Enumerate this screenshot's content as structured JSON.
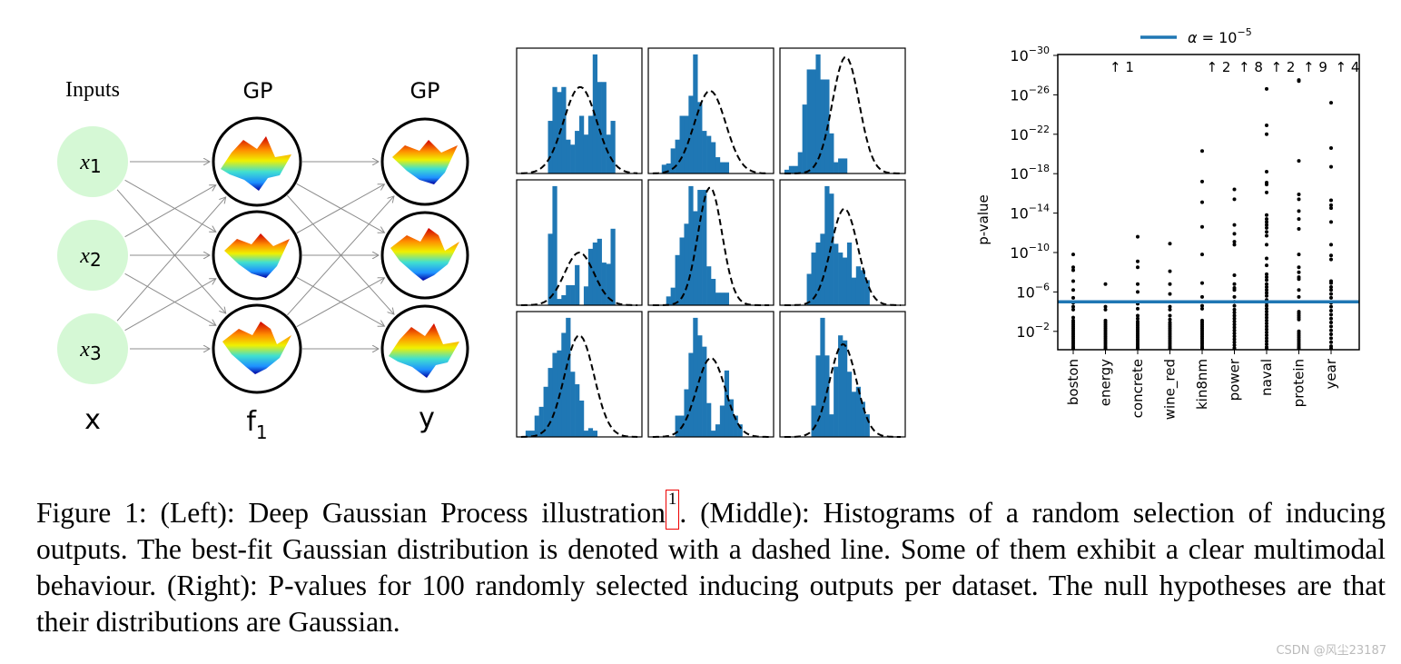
{
  "diagram": {
    "col_titles": [
      "Inputs",
      "GP",
      "GP"
    ],
    "input_nodes": [
      {
        "var": "x",
        "sub": "1"
      },
      {
        "var": "x",
        "sub": "2"
      },
      {
        "var": "x",
        "sub": "3"
      }
    ],
    "layer_labels": [
      {
        "main": "x",
        "sub": ""
      },
      {
        "main": "f",
        "sub": "1"
      },
      {
        "main": "y",
        "sub": ""
      }
    ],
    "colors": {
      "input_fill": "#d5f8d5",
      "edge": "#8c8c8c"
    }
  },
  "chart_data": [
    {
      "type": "histogram-grid",
      "bar_color": "#1f77b4",
      "fit_line": "dashed",
      "panels": [
        {
          "start_bin": 7,
          "heights": [
            0.42,
            0.69,
            0.65,
            0.69,
            0.27,
            0.23,
            0.34,
            0.46,
            0.31,
            0.46,
            0.95,
            0.73,
            0.73,
            0.31,
            0.42
          ],
          "fit": {
            "mean": 14.2,
            "std": 3.7,
            "peak": 0.69
          }
        },
        {
          "start_bin": 3,
          "heights": [
            0.07,
            0.08,
            0.2,
            0.27,
            0.46,
            0.46,
            0.62,
            0.95,
            0.57,
            0.34,
            0.3,
            0.25,
            0.13,
            0.09,
            0.09
          ],
          "fit": {
            "mean": 13.8,
            "std": 3.5,
            "peak": 0.66
          }
        },
        {
          "start_bin": 1,
          "heights": [
            0.03,
            0.06,
            0.06,
            0.17,
            0.55,
            0.83,
            0.83,
            0.95,
            0.75,
            0.75,
            0.32,
            0.09,
            0.12,
            0.12
          ],
          "fit": {
            "mean": 14.7,
            "std": 3.0,
            "peak": 0.93
          }
        },
        {
          "start_bin": 7,
          "heights": [
            0.57,
            0.95,
            0.05,
            0.08,
            0.16,
            0.16,
            0.32,
            0.0,
            0.15,
            0.45,
            0.5,
            0.53,
            0.34,
            0.33,
            0.61
          ],
          "fit": {
            "mean": 14.0,
            "std": 3.3,
            "peak": 0.42
          }
        },
        {
          "start_bin": 4,
          "heights": [
            0.07,
            0.14,
            0.4,
            0.54,
            0.65,
            0.95,
            0.75,
            0.92,
            0.92,
            0.31,
            0.21,
            0.1,
            0.1,
            0.1
          ],
          "fit": {
            "mean": 13.8,
            "std": 2.7,
            "peak": 0.94
          }
        },
        {
          "start_bin": 6,
          "heights": [
            0.25,
            0.42,
            0.5,
            0.57,
            0.95,
            0.89,
            0.49,
            0.42,
            0.38,
            0.5,
            0.22,
            0.31,
            0.28,
            0.2
          ],
          "fit": {
            "mean": 14.4,
            "std": 3.0,
            "peak": 0.77
          }
        },
        {
          "start_bin": 2,
          "heights": [
            0.05,
            0.05,
            0.17,
            0.24,
            0.4,
            0.55,
            0.67,
            0.69,
            0.83,
            0.95,
            0.52,
            0.42,
            0.29,
            0.05,
            0.07,
            0.05
          ],
          "fit": {
            "mean": 14.0,
            "std": 3.3,
            "peak": 0.81
          }
        },
        {
          "start_bin": 6,
          "heights": [
            0.17,
            0.17,
            0.38,
            0.67,
            0.95,
            0.81,
            0.72,
            0.27,
            0.05,
            0.1,
            0.25,
            0.53,
            0.3,
            0.17,
            0.1
          ],
          "fit": {
            "mean": 14.0,
            "std": 3.2,
            "peak": 0.63
          }
        },
        {
          "start_bin": 7,
          "heights": [
            0.25,
            0.65,
            0.95,
            0.65,
            0.18,
            0.56,
            0.81,
            0.77,
            0.52,
            0.36,
            0.4,
            0.28,
            0.18
          ],
          "fit": {
            "mean": 14.1,
            "std": 3.0,
            "peak": 0.74
          }
        }
      ]
    },
    {
      "type": "scatter",
      "ylabel": "p-value",
      "yscale": "log",
      "ylim_log10": [
        0,
        -30
      ],
      "yticks_log10": [
        -2,
        -6,
        -10,
        -14,
        -18,
        -22,
        -26,
        -30
      ],
      "ytick_labels": [
        {
          "base": "10",
          "exp": "−2"
        },
        {
          "base": "10",
          "exp": "−6"
        },
        {
          "base": "10",
          "exp": "−10"
        },
        {
          "base": "10",
          "exp": "−14"
        },
        {
          "base": "10",
          "exp": "−18"
        },
        {
          "base": "10",
          "exp": "−22"
        },
        {
          "base": "10",
          "exp": "−26"
        },
        {
          "base": "10",
          "exp": "−30"
        }
      ],
      "threshold": {
        "log10_value": -5,
        "color": "#1f77b4",
        "legend": {
          "symbol": "α",
          "eq": " = 10",
          "exp": "−5"
        }
      },
      "legend_position": "top-center",
      "point_color": "#000000",
      "categories": [
        "boston",
        "energy",
        "concrete",
        "wine_red",
        "kin8nm",
        "power",
        "naval",
        "protein",
        "year"
      ],
      "offscale_annotations": [
        "",
        "↑ 1",
        "",
        "",
        "↑ 2",
        "↑ 8",
        "↑ 2",
        "↑ 9",
        "↑ 4"
      ],
      "log10_p_values": [
        [
          -9.8,
          -8.5,
          -8.2,
          -7.1,
          -6.2,
          -5.4,
          -4.9,
          -4.5,
          -4.2,
          -3.4,
          -3.1,
          -2.9,
          -2.7,
          -2.5,
          -2.3,
          -2.1,
          -1.9,
          -1.7,
          -1.5,
          -1.3,
          -1.1,
          -0.9,
          -0.7,
          -0.5,
          -0.3,
          -0.1
        ],
        [
          -6.8,
          -4.5,
          -4.2,
          -3.1,
          -2.9,
          -2.7,
          -2.5,
          -2.3,
          -2.1,
          -1.9,
          -1.7,
          -1.5,
          -1.3,
          -1.1,
          -0.9,
          -0.7,
          -0.5,
          -0.3,
          -0.1
        ],
        [
          -11.6,
          -9.1,
          -8.5,
          -6.8,
          -6.0,
          -4.8,
          -4.3,
          -3.6,
          -3.3,
          -3.0,
          -2.8,
          -2.6,
          -2.4,
          -2.2,
          -2.0,
          -1.8,
          -1.6,
          -1.4,
          -1.2,
          -1.0,
          -0.8,
          -0.6,
          -0.4,
          -0.2
        ],
        [
          -10.9,
          -8.1,
          -6.8,
          -5.8,
          -4.5,
          -4.2,
          -3.6,
          -3.2,
          -2.9,
          -2.7,
          -2.5,
          -2.3,
          -2.1,
          -1.9,
          -1.7,
          -1.5,
          -1.3,
          -1.1,
          -0.9,
          -0.7,
          -0.5,
          -0.3,
          -0.1
        ],
        [
          -20.3,
          -17.2,
          -15.1,
          -12.6,
          -9.8,
          -6.9,
          -5.5,
          -4.6,
          -4.3,
          -3.1,
          -2.9,
          -2.7,
          -2.5,
          -2.3,
          -2.1,
          -1.9,
          -1.7,
          -1.5,
          -1.3,
          -1.1,
          -0.9,
          -0.7,
          -0.5,
          -0.3,
          -0.1
        ],
        [
          -16.4,
          -15.4,
          -12.8,
          -11.9,
          -11.1,
          -10.8,
          -7.7,
          -6.8,
          -6.4,
          -6.2,
          -5.5,
          -5.0,
          -4.6,
          -4.2,
          -3.9,
          -3.6,
          -3.3,
          -3.0,
          -2.7,
          -2.4,
          -2.1,
          -1.8,
          -1.5,
          -1.2,
          -0.9,
          -0.6,
          -0.3,
          -0.1
        ],
        [
          -26.6,
          -22.9,
          -22.0,
          -18.2,
          -17.1,
          -16.9,
          -16.1,
          -13.8,
          -13.4,
          -13.1,
          -12.8,
          -12.5,
          -12.1,
          -11.7,
          -10.8,
          -9.4,
          -8.7,
          -7.8,
          -7.5,
          -7.2,
          -6.8,
          -6.5,
          -6.2,
          -5.9,
          -5.6,
          -5.2,
          -4.9,
          -4.6,
          -4.3,
          -4.0,
          -3.7,
          -3.4,
          -3.1,
          -2.8,
          -2.5,
          -2.2,
          -1.9,
          -1.6,
          -1.3,
          -1.0,
          -0.7,
          -0.4,
          -0.1
        ],
        [
          -27.5,
          -27.4,
          -19.3,
          -15.9,
          -15.4,
          -14.2,
          -13.4,
          -12.4,
          -9.8,
          -8.5,
          -8.0,
          -7.5,
          -7.3,
          -6.2,
          -5.5,
          -4.0,
          -3.8,
          -3.6,
          -3.4,
          -3.2,
          -2.0,
          -1.8,
          -1.6,
          -1.4,
          -1.2,
          -1.0,
          -0.8,
          -0.6,
          -0.4,
          -0.2
        ],
        [
          -25.2,
          -20.6,
          -18.7,
          -15.3,
          -14.8,
          -14.5,
          -13.1,
          -10.8,
          -9.7,
          -9.3,
          -7.1,
          -6.9,
          -6.5,
          -6.2,
          -5.8,
          -5.4,
          -4.9,
          -4.5,
          -4.1,
          -3.7,
          -3.3,
          -2.9,
          -2.5,
          -2.1,
          -1.7,
          -1.3,
          -0.9,
          -0.5,
          -0.2
        ]
      ]
    }
  ],
  "caption": {
    "before_ref": "Figure 1: (Left): Deep Gaussian Process illustration",
    "ref": "1",
    "after_ref": ". (Middle): Histograms of a random selection of inducing outputs. The best-fit Gaussian distribution is denoted with a dashed line. Some of them exhibit a clear multimodal behaviour. (Right): P-values for 100 randomly selected inducing outputs per dataset. The null hypotheses are that their distributions are Gaussian."
  },
  "watermark": "CSDN @风尘23187"
}
